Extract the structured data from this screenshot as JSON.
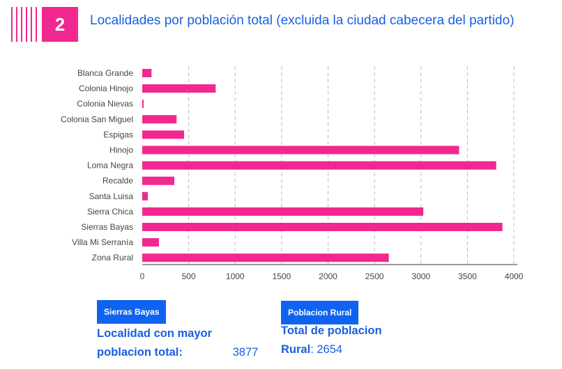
{
  "header": {
    "number": "2",
    "title": "Localidades por población total (excluida la ciudad cabecera del partido)"
  },
  "chart_data": {
    "type": "bar",
    "orientation": "horizontal",
    "categories": [
      "Blanca Grande",
      "Colonia Hinojo",
      "Colonia Nievas",
      "Colonia San Miguel",
      "Espigas",
      "Hinojo",
      "Loma Negra",
      "Recalde",
      "Santa Luisa",
      "Sierra Chica",
      "Sierras Bayas",
      "Villa Mi Serranía",
      "Zona Rural"
    ],
    "values": [
      100,
      790,
      15,
      370,
      450,
      3410,
      3810,
      345,
      60,
      3025,
      3877,
      180,
      2654
    ],
    "xlim": [
      0,
      4000
    ],
    "xticks": [
      0,
      500,
      1000,
      1500,
      2000,
      2500,
      3000,
      3500,
      4000
    ],
    "grid": "vertical dashed",
    "bar_color": "#f0288f"
  },
  "cards": [
    {
      "tag": "Sierras Bayas",
      "text_bold": "Localidad con mayor poblacion total:",
      "value": "3877"
    },
    {
      "tag": "Poblacion Rural",
      "text_bold1": "Total de poblacion",
      "text_bold2": "Rural",
      "value": "2654"
    }
  ]
}
